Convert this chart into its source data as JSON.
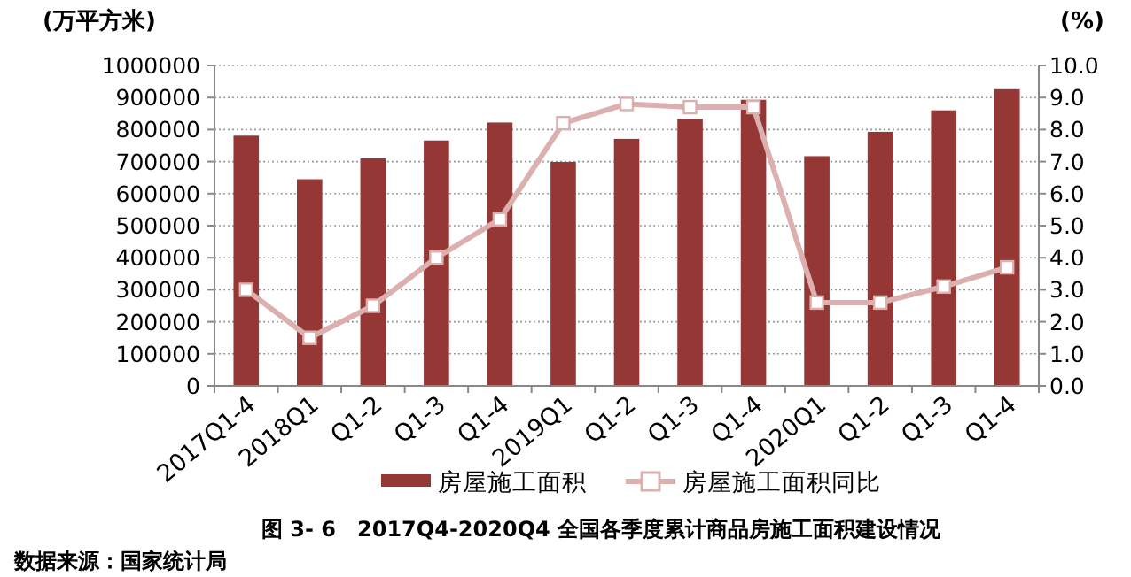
{
  "chart_data": {
    "type": "bar",
    "title": "图 3- 6　2017Q4-2020Q4 全国各季度累计商品房施工面积建设情况",
    "ylabel": "(万平方米)",
    "y2label": "(%)",
    "categories": [
      "2017Q1-4",
      "2018Q1",
      "Q1-2",
      "Q1-3",
      "Q1-4",
      "2019Q1",
      "Q1-2",
      "Q1-3",
      "Q1-4",
      "2020Q1",
      "Q1-2",
      "Q1-3",
      "Q1-4"
    ],
    "series": [
      {
        "name": "房屋施工面积",
        "color": "#953735",
        "values": [
          781000,
          645000,
          710000,
          766000,
          822000,
          699000,
          771000,
          833000,
          893000,
          717000,
          793000,
          860000,
          926000
        ]
      },
      {
        "name": "房屋施工面积同比",
        "type": "line",
        "axis": "y2",
        "color": "#dbb0ae",
        "marker": "square",
        "values": [
          3.0,
          1.5,
          2.5,
          4.0,
          5.2,
          8.2,
          8.8,
          8.7,
          8.7,
          2.6,
          2.6,
          3.1,
          3.7
        ]
      }
    ],
    "ylim": [
      0,
      1000000
    ],
    "yticks": [
      0,
      100000,
      200000,
      300000,
      400000,
      500000,
      600000,
      700000,
      800000,
      900000,
      1000000
    ],
    "y2lim": [
      0,
      10
    ],
    "y2ticks": [
      {
        "value": 0,
        "label": "0.0"
      },
      {
        "value": 1,
        "label": "1.0"
      },
      {
        "value": 2,
        "label": "2.0"
      },
      {
        "value": 3,
        "label": "3.0"
      },
      {
        "value": 4,
        "label": "4.0"
      },
      {
        "value": 5,
        "label": "5.0"
      },
      {
        "value": 6,
        "label": "6.0"
      },
      {
        "value": 7,
        "label": "7.0"
      },
      {
        "value": 8,
        "label": "8.0"
      },
      {
        "value": 9,
        "label": "9.0"
      },
      {
        "value": 10,
        "label": "10.0"
      }
    ],
    "grid": "y",
    "legend": "bottom",
    "annotations": [
      "数据来源：国家统计局"
    ]
  }
}
